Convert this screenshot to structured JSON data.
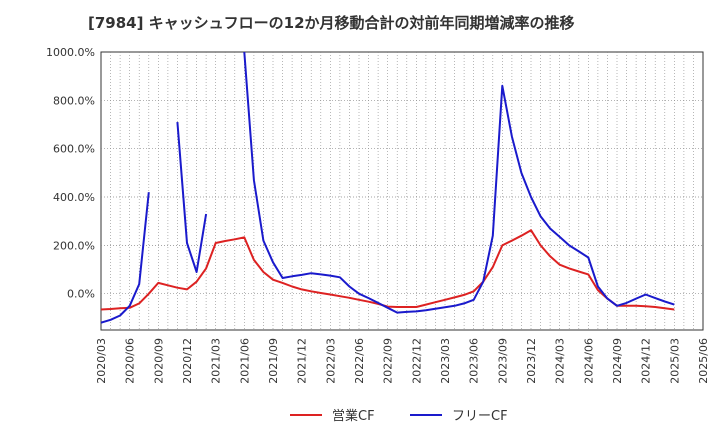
{
  "chart_data": {
    "type": "line",
    "title": "[7984]  キャッシュフローの12か月移動合計の対前年同期増減率の推移",
    "xlabel": "",
    "ylabel": "",
    "ylim": [
      -150,
      1000
    ],
    "y_ticks": [
      0,
      200,
      400,
      600,
      800,
      1000
    ],
    "y_tick_labels": [
      "0.0%",
      "200.0%",
      "400.0%",
      "600.0%",
      "800.0%",
      "1000.0%"
    ],
    "x_tick_labels": [
      "2020/03",
      "2020/06",
      "2020/09",
      "2020/12",
      "2021/03",
      "2021/06",
      "2021/09",
      "2021/12",
      "2022/03",
      "2022/06",
      "2022/09",
      "2022/12",
      "2023/03",
      "2023/06",
      "2023/09",
      "2023/12",
      "2024/03",
      "2024/06",
      "2024/09",
      "2024/12",
      "2025/03",
      "2025/06"
    ],
    "months": [
      "2020/03",
      "2020/04",
      "2020/05",
      "2020/06",
      "2020/07",
      "2020/08",
      "2020/09",
      "2020/10",
      "2020/11",
      "2020/12",
      "2021/01",
      "2021/02",
      "2021/03",
      "2021/04",
      "2021/05",
      "2021/06",
      "2021/07",
      "2021/08",
      "2021/09",
      "2021/10",
      "2021/11",
      "2021/12",
      "2022/01",
      "2022/02",
      "2022/03",
      "2022/04",
      "2022/05",
      "2022/06",
      "2022/07",
      "2022/08",
      "2022/09",
      "2022/10",
      "2022/11",
      "2022/12",
      "2023/01",
      "2023/02",
      "2023/03",
      "2023/04",
      "2023/05",
      "2023/06",
      "2023/07",
      "2023/08",
      "2023/09",
      "2023/10",
      "2023/11",
      "2023/12",
      "2024/01",
      "2024/02",
      "2024/03",
      "2024/04",
      "2024/05",
      "2024/06",
      "2024/07",
      "2024/08",
      "2024/09",
      "2024/10",
      "2024/11",
      "2024/12",
      "2025/01",
      "2025/02",
      "2025/03",
      "2025/04",
      "2025/05",
      "2025/06"
    ],
    "series": [
      {
        "name": "営業CF",
        "color": "#dd2222",
        "values": [
          -65,
          -63,
          -60,
          -58,
          -40,
          0,
          45,
          35,
          25,
          18,
          50,
          105,
          210,
          218,
          225,
          233,
          140,
          90,
          58,
          45,
          30,
          18,
          10,
          3,
          -3,
          -10,
          -17,
          -25,
          -33,
          -42,
          -53,
          -55,
          -55,
          -55,
          -45,
          -35,
          -25,
          -15,
          -5,
          10,
          50,
          110,
          200,
          220,
          240,
          263,
          200,
          155,
          120,
          105,
          92,
          80,
          15,
          -20,
          -50,
          -50,
          -50,
          -52,
          -55,
          -60,
          -65,
          null,
          null,
          null
        ]
      },
      {
        "name": "フリーCF",
        "color": "#1a1acc",
        "values": [
          -120,
          -108,
          -90,
          -50,
          40,
          420,
          null,
          null,
          710,
          210,
          90,
          330,
          null,
          null,
          null,
          1000,
          470,
          220,
          130,
          65,
          72,
          78,
          85,
          80,
          75,
          68,
          30,
          0,
          -18,
          -38,
          -58,
          -78,
          -75,
          -73,
          -68,
          -62,
          -56,
          -50,
          -40,
          -25,
          50,
          240,
          860,
          650,
          500,
          400,
          320,
          270,
          235,
          200,
          175,
          150,
          30,
          -20,
          -50,
          -38,
          -20,
          -3,
          -18,
          -32,
          -45,
          null,
          null,
          null
        ]
      }
    ],
    "legend_position": "bottom-center"
  }
}
